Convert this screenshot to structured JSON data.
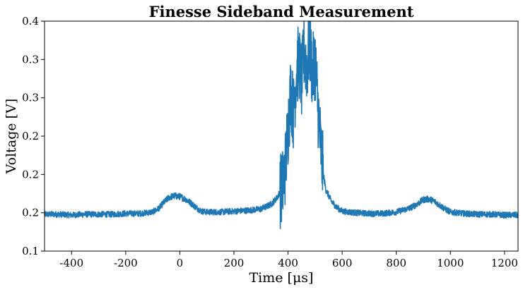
{
  "chart_data": {
    "type": "line",
    "title": "Finesse Sideband Measurement",
    "xlabel": "Time [μs]",
    "ylabel": "Voltage [V]",
    "xlim": [
      -500,
      1250
    ],
    "ylim": [
      0.1,
      0.4
    ],
    "xticks": [
      -400,
      -200,
      0,
      200,
      400,
      600,
      800,
      1000,
      1200
    ],
    "xtick_labels": [
      "-400",
      "-200",
      "0",
      "200",
      "400",
      "600",
      "800",
      "1000",
      "1200"
    ],
    "yticks": [
      0.1,
      0.15,
      0.2,
      0.25,
      0.3,
      0.35,
      0.4
    ],
    "ytick_labels": [
      "0.1",
      "0.2",
      "0.2",
      "0.2",
      "0.3",
      "0.3",
      "0.4"
    ],
    "grid": false,
    "legend": false,
    "line_color": "#1f77b4",
    "series": [
      {
        "x": [
          -500,
          -450,
          -400,
          -350,
          -300,
          -250,
          -200,
          -150,
          -100,
          -80,
          -60,
          -40,
          -20,
          0,
          20,
          40,
          60,
          80,
          100,
          150,
          200,
          250,
          300,
          320,
          340,
          360,
          380,
          390,
          400,
          410,
          420,
          430,
          440,
          450,
          460,
          470,
          480,
          490,
          500,
          510,
          520,
          530,
          540,
          560,
          580,
          600,
          650,
          700,
          750,
          800,
          850,
          880,
          900,
          920,
          940,
          960,
          980,
          1000,
          1050,
          1100,
          1150,
          1200,
          1250
        ],
        "y": [
          0.148,
          0.148,
          0.147,
          0.148,
          0.148,
          0.148,
          0.149,
          0.149,
          0.151,
          0.155,
          0.163,
          0.17,
          0.172,
          0.171,
          0.168,
          0.163,
          0.157,
          0.152,
          0.151,
          0.151,
          0.152,
          0.153,
          0.155,
          0.158,
          0.162,
          0.17,
          0.185,
          0.21,
          0.26,
          0.31,
          0.28,
          0.33,
          0.35,
          0.32,
          0.36,
          0.34,
          0.37,
          0.33,
          0.35,
          0.29,
          0.24,
          0.2,
          0.18,
          0.165,
          0.157,
          0.152,
          0.15,
          0.149,
          0.149,
          0.151,
          0.156,
          0.162,
          0.167,
          0.168,
          0.165,
          0.16,
          0.155,
          0.151,
          0.149,
          0.148,
          0.148,
          0.147,
          0.147
        ]
      }
    ]
  }
}
